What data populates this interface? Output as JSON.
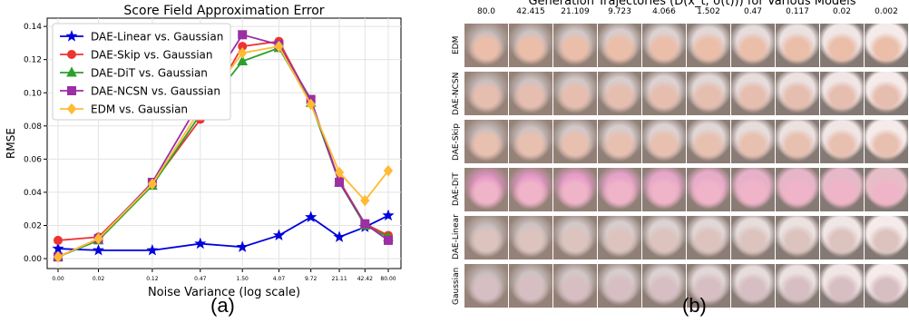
{
  "chart_data": [
    {
      "type": "line",
      "title": "Score Field Approximation Error",
      "xlabel": "Noise Variance (log scale)",
      "ylabel": "RMSE",
      "categories": [
        "0.00",
        "0.02",
        "0.12",
        "0.47",
        "1.50",
        "4.07",
        "9.72",
        "21.11",
        "42.42",
        "80.00"
      ],
      "x_scale": "log",
      "ylim": [
        -0.006,
        0.145
      ],
      "yticks": [
        "0.00",
        "0.02",
        "0.04",
        "0.06",
        "0.08",
        "0.10",
        "0.12",
        "0.14"
      ],
      "grid": true,
      "legend_position": "top-left",
      "series": [
        {
          "name": "DAE-Linear vs. Gaussian",
          "color": "#0000dd",
          "marker": "star",
          "values": [
            0.006,
            0.005,
            0.005,
            0.009,
            0.007,
            0.014,
            0.025,
            0.013,
            0.019,
            0.026
          ]
        },
        {
          "name": "DAE-Skip vs. Gaussian",
          "color": "#ee3333",
          "marker": "circle",
          "values": [
            0.011,
            0.013,
            0.045,
            0.084,
            0.128,
            0.131,
            0.095,
            0.047,
            0.021,
            0.014
          ]
        },
        {
          "name": "DAE-DiT vs. Gaussian",
          "color": "#2ca02c",
          "marker": "triangle",
          "values": [
            0.001,
            0.011,
            0.044,
            0.087,
            0.119,
            0.127,
            0.094,
            0.046,
            0.02,
            0.013
          ]
        },
        {
          "name": "DAE-NCSN vs. Gaussian",
          "color": "#9b2fa3",
          "marker": "square",
          "values": [
            0.001,
            0.012,
            0.046,
            0.095,
            0.135,
            0.129,
            0.096,
            0.046,
            0.021,
            0.011
          ]
        },
        {
          "name": "EDM vs. Gaussian",
          "color": "#ffbb33",
          "marker": "diamond",
          "values": [
            0.001,
            0.012,
            0.045,
            0.09,
            0.124,
            0.128,
            0.093,
            0.052,
            0.035,
            0.053
          ]
        }
      ],
      "caption": "(a)"
    },
    {
      "type": "image-grid",
      "title": "Generation Trajectories (D(x_t; σ(t))) for Various Models",
      "columns": [
        "80.0",
        "42.415",
        "21.109",
        "9.723",
        "4.066",
        "1.502",
        "0.47",
        "0.117",
        "0.02",
        "0.002"
      ],
      "rows": [
        "EDM",
        "DAE-NCSN",
        "DAE-Skip",
        "DAE-DiT",
        "DAE-Linear",
        "Gaussian"
      ],
      "caption": "(b)"
    }
  ]
}
